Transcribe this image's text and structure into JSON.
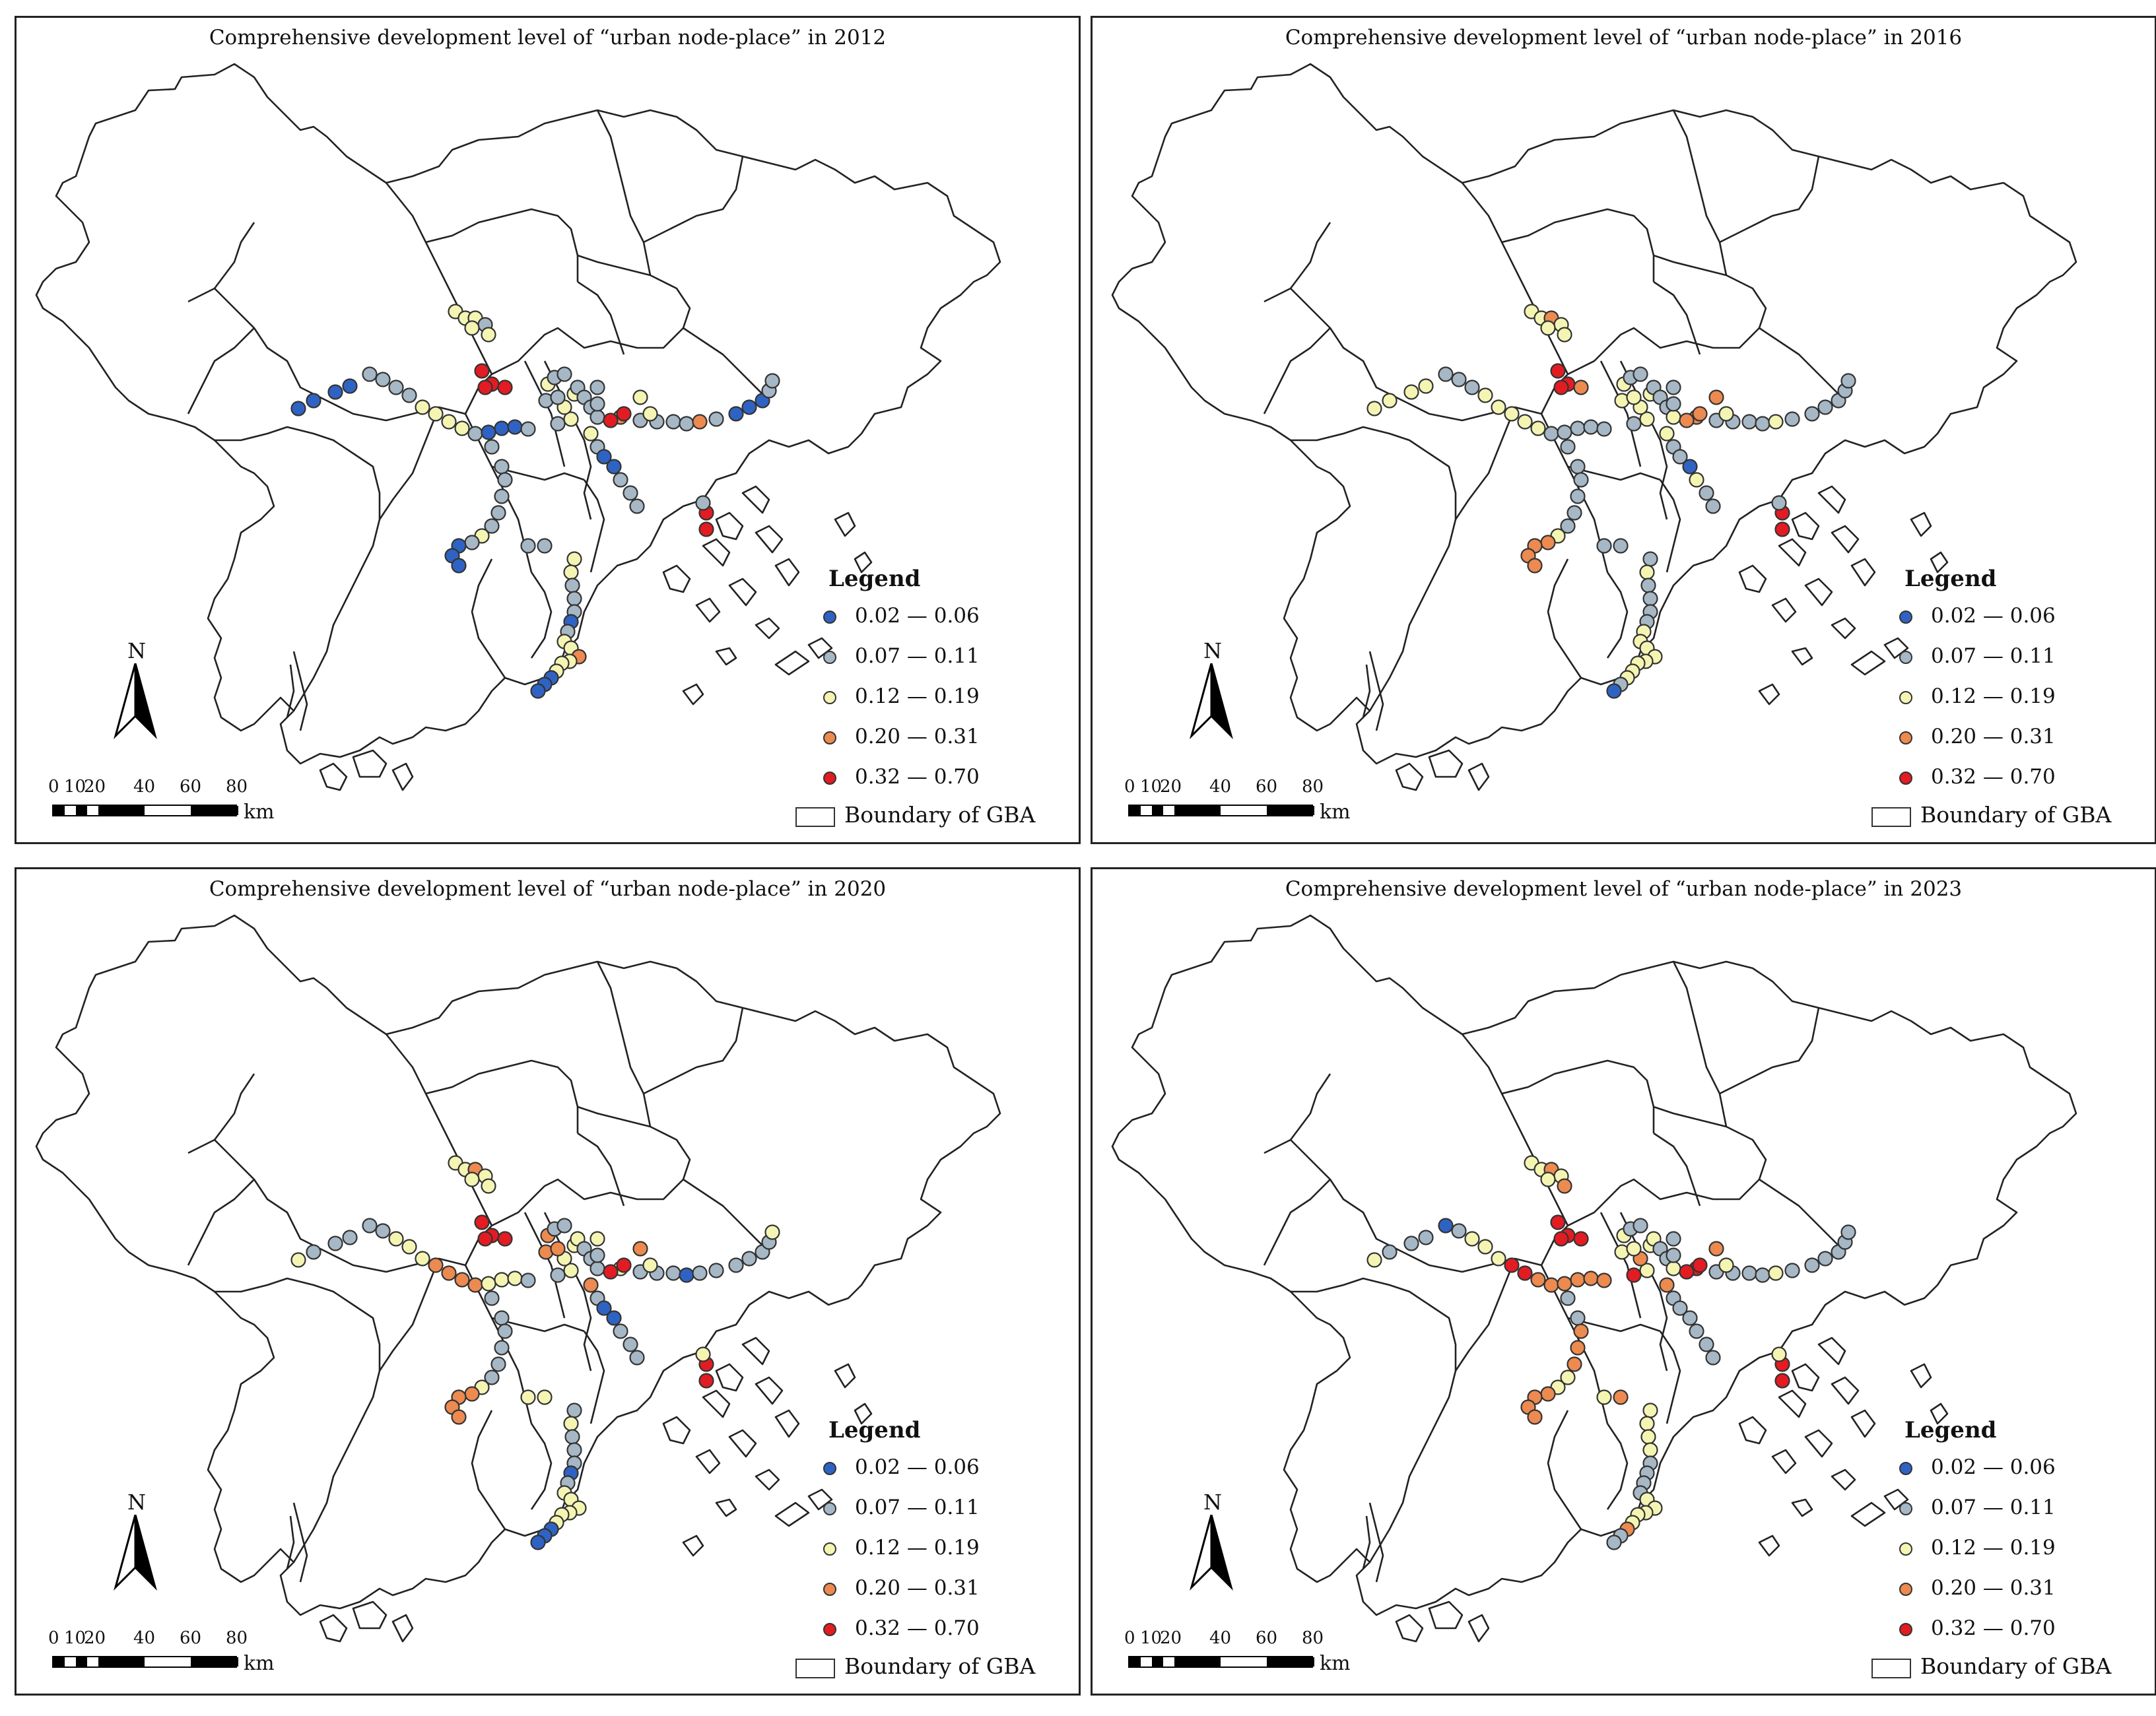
{
  "panels": [
    {
      "title": "Comprehensive development level of “urban node-place” in 2012",
      "year": "2012",
      "points": [
        "b",
        "b",
        "b",
        "b",
        "g",
        "g",
        "g",
        "g",
        "y",
        "y",
        "y",
        "y",
        "g",
        "b",
        "b",
        "b",
        "g",
        "g",
        "y",
        "y",
        "y",
        "y",
        "g",
        "g",
        "g",
        "g",
        "g",
        "g",
        "g",
        "g",
        "o",
        "g",
        "g",
        "g",
        "g",
        "o",
        "g",
        "b",
        "b",
        "b",
        "g",
        "g",
        "g",
        "g",
        "r",
        "r",
        "y",
        "y",
        "y",
        "g",
        "b",
        "b",
        "g",
        "g",
        "g",
        "g",
        "g",
        "g",
        "g",
        "g",
        "g",
        "y",
        "g",
        "b",
        "b",
        "b",
        "r",
        "r",
        "g",
        "g",
        "g",
        "y",
        "y",
        "g",
        "g",
        "g",
        "b",
        "g",
        "y",
        "y",
        "o",
        "y",
        "y",
        "y",
        "b",
        "b",
        "b",
        "r",
        "r",
        "r",
        "r",
        "y",
        "y",
        "y",
        "g",
        "y",
        "y"
      ]
    },
    {
      "title": "Comprehensive development level of “urban node-place” in 2016",
      "year": "2016",
      "points": [
        "y",
        "y",
        "y",
        "y",
        "g",
        "g",
        "g",
        "y",
        "y",
        "y",
        "y",
        "y",
        "g",
        "g",
        "g",
        "g",
        "g",
        "g",
        "y",
        "y",
        "y",
        "y",
        "y",
        "y",
        "g",
        "g",
        "g",
        "g",
        "g",
        "y",
        "o",
        "g",
        "g",
        "g",
        "g",
        "y",
        "g",
        "g",
        "g",
        "g",
        "g",
        "g",
        "g",
        "g",
        "o",
        "o",
        "y",
        "o",
        "y",
        "g",
        "g",
        "b",
        "y",
        "g",
        "g",
        "g",
        "g",
        "g",
        "g",
        "g",
        "g",
        "y",
        "o",
        "o",
        "o",
        "o",
        "r",
        "r",
        "g",
        "g",
        "g",
        "g",
        "y",
        "g",
        "g",
        "g",
        "g",
        "y",
        "y",
        "y",
        "y",
        "y",
        "y",
        "y",
        "y",
        "g",
        "b",
        "r",
        "r",
        "o",
        "r",
        "y",
        "y",
        "o",
        "y",
        "y",
        "y"
      ]
    },
    {
      "title": "Comprehensive development level of “urban node-place” in 2020",
      "year": "2020",
      "points": [
        "y",
        "g",
        "g",
        "g",
        "g",
        "g",
        "y",
        "y",
        "y",
        "o",
        "o",
        "o",
        "o",
        "y",
        "y",
        "y",
        "g",
        "g",
        "y",
        "y",
        "y",
        "o",
        "o",
        "o",
        "g",
        "g",
        "y",
        "g",
        "g",
        "g",
        "y",
        "g",
        "g",
        "g",
        "b",
        "g",
        "g",
        "g",
        "g",
        "g",
        "g",
        "y",
        "y",
        "g",
        "r",
        "r",
        "y",
        "o",
        "o",
        "g",
        "b",
        "b",
        "g",
        "g",
        "g",
        "g",
        "g",
        "g",
        "g",
        "g",
        "g",
        "y",
        "o",
        "o",
        "o",
        "o",
        "r",
        "r",
        "y",
        "y",
        "y",
        "g",
        "y",
        "g",
        "g",
        "g",
        "b",
        "g",
        "y",
        "y",
        "y",
        "y",
        "y",
        "y",
        "b",
        "b",
        "b",
        "r",
        "r",
        "r",
        "r",
        "y",
        "y",
        "o",
        "y",
        "y",
        "y"
      ]
    },
    {
      "title": "Comprehensive development level of “urban node-place” in 2023",
      "year": "2023",
      "points": [
        "y",
        "g",
        "g",
        "g",
        "b",
        "g",
        "y",
        "y",
        "y",
        "r",
        "r",
        "o",
        "o",
        "o",
        "o",
        "o",
        "o",
        "r",
        "y",
        "o",
        "y",
        "y",
        "y",
        "y",
        "g",
        "g",
        "y",
        "g",
        "g",
        "y",
        "r",
        "g",
        "g",
        "g",
        "g",
        "y",
        "g",
        "g",
        "g",
        "g",
        "g",
        "g",
        "g",
        "g",
        "r",
        "r",
        "y",
        "o",
        "o",
        "g",
        "g",
        "g",
        "g",
        "g",
        "g",
        "g",
        "g",
        "o",
        "o",
        "o",
        "y",
        "y",
        "o",
        "o",
        "o",
        "o",
        "r",
        "r",
        "y",
        "o",
        "y",
        "y",
        "y",
        "y",
        "y",
        "g",
        "g",
        "g",
        "g",
        "y",
        "y",
        "y",
        "y",
        "y",
        "o",
        "g",
        "g",
        "r",
        "r",
        "r",
        "r",
        "y",
        "y",
        "o",
        "y",
        "y",
        "o"
      ]
    }
  ],
  "legend": {
    "title": "Legend",
    "items": [
      {
        "label": "0.02 — 0.06",
        "color": "#2f63c3"
      },
      {
        "label": "0.07 — 0.11",
        "color": "#a6b7c5"
      },
      {
        "label": "0.12 — 0.19",
        "color": "#f5f5b3"
      },
      {
        "label": "0.20 — 0.31",
        "color": "#ec8a50"
      },
      {
        "label": "0.32 — 0.70",
        "color": "#e21c22"
      }
    ],
    "boundary_label": "Boundary of GBA"
  },
  "north_label": "N",
  "scale": {
    "ticks": [
      "0",
      "10",
      "20",
      "40",
      "60",
      "80"
    ],
    "unit": "km"
  },
  "class_colors": {
    "b": "#2f63c3",
    "g": "#a6b7c5",
    "y": "#f5f5b3",
    "o": "#ec8a50",
    "r": "#e21c22"
  }
}
